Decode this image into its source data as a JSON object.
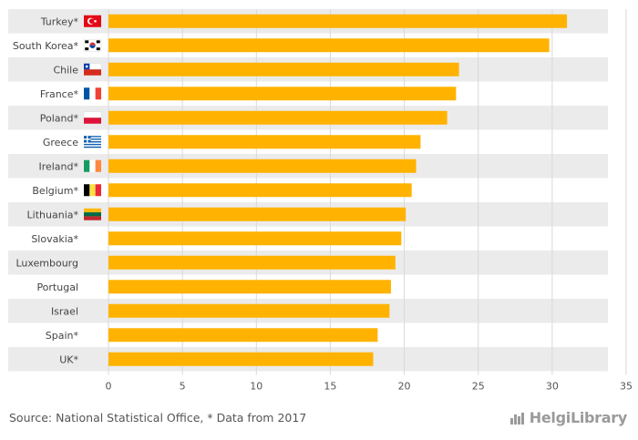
{
  "chart_data": {
    "type": "bar",
    "orientation": "horizontal",
    "categories": [
      "Turkey*",
      "South Korea*",
      "Chile",
      "France*",
      "Poland*",
      "Greece",
      "Ireland*",
      "Belgium*",
      "Lithuania*",
      "Slovakia*",
      "Luxembourg",
      "Portugal",
      "Israel",
      "Spain*",
      "UK*"
    ],
    "values": [
      31.0,
      29.8,
      23.7,
      23.5,
      22.9,
      21.1,
      20.8,
      20.5,
      20.1,
      19.8,
      19.4,
      19.1,
      19.0,
      18.2,
      17.9
    ],
    "flags": [
      "turkey",
      "south-korea",
      "chile",
      "france",
      "poland",
      "greece",
      "ireland",
      "belgium",
      "lithuania",
      "",
      "",
      "",
      "",
      "",
      ""
    ],
    "xlim": [
      0,
      35
    ],
    "xticks": [
      0,
      5,
      10,
      15,
      20,
      25,
      30,
      35
    ],
    "bar_color": "#FFB300",
    "band_color": "#EBEBEB",
    "grid": true
  },
  "footer": {
    "source": "Source: National Statistical Office, * Data from 2017",
    "brand": "HelgiLibrary"
  }
}
